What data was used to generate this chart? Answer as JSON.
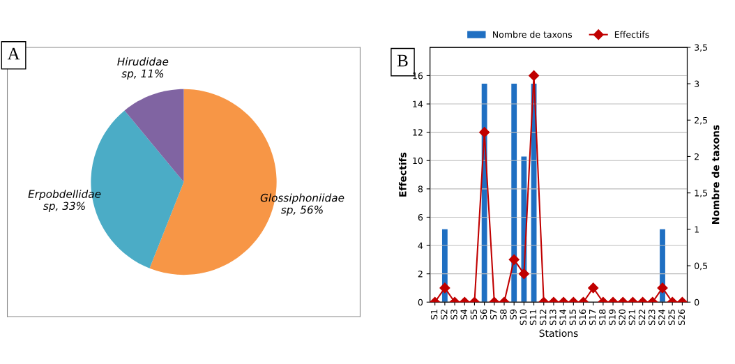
{
  "chart_data": [
    {
      "type": "pie",
      "annotations": [
        "A"
      ],
      "categories": [
        "Glossiphoniidae sp",
        "Erpobdellidae sp",
        "Hirudidae sp"
      ],
      "values": [
        56,
        33,
        11
      ],
      "value_labels": [
        "56%",
        "33%",
        "11%"
      ],
      "colors": [
        "#f79646",
        "#4bacc6",
        "#8064a2"
      ]
    },
    {
      "type": "bar",
      "annotations": [
        "B"
      ],
      "xlabel": "Stations",
      "ylabel": "Effectifs",
      "y2label": "Nombre de taxons",
      "categories": [
        "S1",
        "S2",
        "S3",
        "S4",
        "S5",
        "S6",
        "S7",
        "S8",
        "S9",
        "S10",
        "S11",
        "S12",
        "S13",
        "S14",
        "S15",
        "S16",
        "S17",
        "S18",
        "S19",
        "S20",
        "S21",
        "S22",
        "S23",
        "S24",
        "S25",
        "S26"
      ],
      "series": [
        {
          "name": "Nombre de taxons",
          "axis": "y2",
          "color": "#1f6fc2",
          "values": [
            0,
            1,
            0,
            0,
            0,
            3,
            0,
            0,
            3,
            2,
            3,
            0,
            0,
            0,
            0,
            0,
            0,
            0,
            0,
            0,
            0,
            0,
            0,
            1,
            0,
            0
          ]
        },
        {
          "name": "Effectifs",
          "type": "line",
          "color": "#c00000",
          "marker": "diamond",
          "values": [
            0,
            1,
            0,
            0,
            0,
            12,
            0,
            0,
            3,
            2,
            16,
            0,
            0,
            0,
            0,
            0,
            1,
            0,
            0,
            0,
            0,
            0,
            0,
            1,
            0,
            0
          ]
        }
      ],
      "ylim": [
        0,
        18
      ],
      "yticks": [
        0,
        2,
        4,
        6,
        8,
        10,
        12,
        14,
        16
      ],
      "y2lim": [
        0,
        3.5
      ],
      "y2ticks": [
        {
          "value": 0,
          "label": "0"
        },
        {
          "value": 0.5,
          "label": "0,5"
        },
        {
          "value": 1,
          "label": "1"
        },
        {
          "value": 1.5,
          "label": "1,5"
        },
        {
          "value": 2,
          "label": "2"
        },
        {
          "value": 2.5,
          "label": "2,5"
        },
        {
          "value": 3,
          "label": "3"
        },
        {
          "value": 3.5,
          "label": "3,5"
        }
      ],
      "grid": "y",
      "legend": "top"
    }
  ]
}
